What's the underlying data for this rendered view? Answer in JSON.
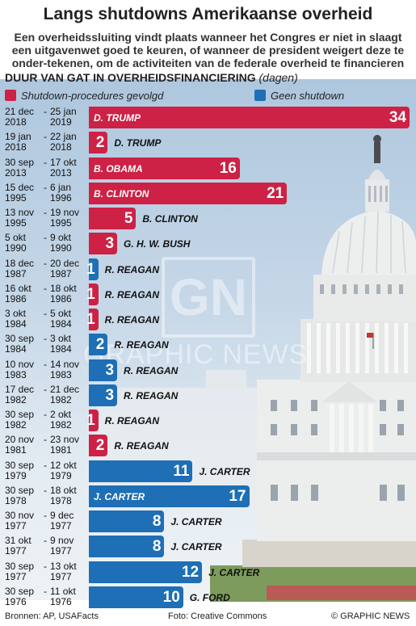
{
  "header": {
    "title": "Langs shutdowns Amerikaanse overheid",
    "subtitle": "Een overheidssluiting vindt plaats wanneer het Congres er niet in slaagt een uitgavenwet goed te keuren, of wanneer de president weigert deze te onder-tekenen, om de activiteiten van de federale overheid te financieren"
  },
  "chart_data": {
    "type": "bar",
    "title": "DUUR VAN GAT IN OVERHEIDSFINANCIERING",
    "unit": "(dagen)",
    "legend": [
      {
        "label": "Shutdown-procedures gevolgd",
        "color": "#cd2145"
      },
      {
        "label": "Geen shutdown",
        "color": "#1e6fb5"
      }
    ],
    "rows": [
      {
        "start": [
          "21 dec",
          "2018"
        ],
        "end": [
          "25 jan",
          "2019"
        ],
        "days": 34,
        "president": "D. TRUMP",
        "shutdown": true
      },
      {
        "start": [
          "19 jan",
          "2018"
        ],
        "end": [
          "22 jan",
          "2018"
        ],
        "days": 2,
        "president": "D. TRUMP",
        "shutdown": true
      },
      {
        "start": [
          "30 sep",
          "2013"
        ],
        "end": [
          "17 okt",
          "2013"
        ],
        "days": 16,
        "president": "B. OBAMA",
        "shutdown": true
      },
      {
        "start": [
          "15 dec",
          "1995"
        ],
        "end": [
          "6 jan",
          "1996"
        ],
        "days": 21,
        "president": "B. CLINTON",
        "shutdown": true
      },
      {
        "start": [
          "13 nov",
          "1995"
        ],
        "end": [
          "19 nov",
          "1995"
        ],
        "days": 5,
        "president": "B. CLINTON",
        "shutdown": true
      },
      {
        "start": [
          "5 okt",
          "1990"
        ],
        "end": [
          "9 okt",
          "1990"
        ],
        "days": 3,
        "president": "G. H. W. BUSH",
        "shutdown": true
      },
      {
        "start": [
          "18 dec",
          "1987"
        ],
        "end": [
          "20 dec",
          "1987"
        ],
        "days": 1,
        "president": "R. REAGAN",
        "shutdown": false
      },
      {
        "start": [
          "16 okt",
          "1986"
        ],
        "end": [
          "18 okt",
          "1986"
        ],
        "days": 1,
        "president": "R. REAGAN",
        "shutdown": true
      },
      {
        "start": [
          "3 okt",
          "1984"
        ],
        "end": [
          "5 okt",
          "1984"
        ],
        "days": 1,
        "president": "R. REAGAN",
        "shutdown": true
      },
      {
        "start": [
          "30 sep",
          "1984"
        ],
        "end": [
          "3 okt",
          "1984"
        ],
        "days": 2,
        "president": "R. REAGAN",
        "shutdown": false
      },
      {
        "start": [
          "10 nov",
          "1983"
        ],
        "end": [
          "14 nov",
          "1983"
        ],
        "days": 3,
        "president": "R. REAGAN",
        "shutdown": false
      },
      {
        "start": [
          "17 dec",
          "1982"
        ],
        "end": [
          "21 dec",
          "1982"
        ],
        "days": 3,
        "president": "R. REAGAN",
        "shutdown": false
      },
      {
        "start": [
          "30 sep",
          "1982"
        ],
        "end": [
          "2 okt",
          "1982"
        ],
        "days": 1,
        "president": "R. REAGAN",
        "shutdown": true
      },
      {
        "start": [
          "20 nov",
          "1981"
        ],
        "end": [
          "23 nov",
          "1981"
        ],
        "days": 2,
        "president": "R. REAGAN",
        "shutdown": true
      },
      {
        "start": [
          "30 sep",
          "1979"
        ],
        "end": [
          "12 okt",
          "1979"
        ],
        "days": 11,
        "president": "J. CARTER",
        "shutdown": false
      },
      {
        "start": [
          "30 sep",
          "1978"
        ],
        "end": [
          "18 okt",
          "1978"
        ],
        "days": 17,
        "president": "J. CARTER",
        "shutdown": false
      },
      {
        "start": [
          "30 nov",
          "1977"
        ],
        "end": [
          "9 dec",
          "1977"
        ],
        "days": 8,
        "president": "J. CARTER",
        "shutdown": false
      },
      {
        "start": [
          "31 okt",
          "1977"
        ],
        "end": [
          "9 nov",
          "1977"
        ],
        "days": 8,
        "president": "J. CARTER",
        "shutdown": false
      },
      {
        "start": [
          "30 sep",
          "1977"
        ],
        "end": [
          "13 okt",
          "1977"
        ],
        "days": 12,
        "president": "J. CARTER",
        "shutdown": false
      },
      {
        "start": [
          "30 sep",
          "1976"
        ],
        "end": [
          "11 okt",
          "1976"
        ],
        "days": 10,
        "president": "G. FORD",
        "shutdown": false
      }
    ]
  },
  "watermark": {
    "logo": "GN",
    "text": "GRAPHIC NEWS"
  },
  "footer": {
    "sources": "Bronnen: AP, USAFacts",
    "photo": "Foto: Creative Commons",
    "credit": "© GRAPHIC NEWS"
  }
}
